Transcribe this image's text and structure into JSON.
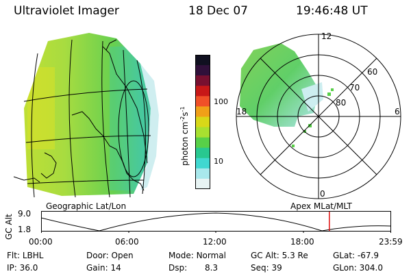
{
  "header": {
    "instrument": "Ultraviolet Imager",
    "date": "18 Dec 07",
    "time": "19:46:48 UT"
  },
  "colorbar": {
    "unit_label": "photon cm",
    "unit_sup1": "-2",
    "unit_mid": "s",
    "unit_sup2": "-1",
    "tick_100": "100",
    "tick_10": "10",
    "colors": [
      "#101020",
      "#30103a",
      "#781030",
      "#c81818",
      "#f05028",
      "#f0a018",
      "#d8d818",
      "#a8e030",
      "#58d048",
      "#28c890",
      "#40d8d0",
      "#a8e8ec",
      "#e8f4f4"
    ]
  },
  "map_labels": {
    "geographic": "Geographic Lat/Lon",
    "apex": "Apex MLat/MLT"
  },
  "polar": {
    "mlt_top": "12",
    "mlt_left": "18",
    "mlt_right": "6",
    "mlt_bottom": "0",
    "lat_60": "60",
    "lat_70": "70",
    "lat_80": "80"
  },
  "altitude_plot": {
    "ylabel": "GC Alt",
    "y_max": "9.0",
    "y_min": "1.8",
    "x_ticks": [
      "00:00",
      "06:00",
      "12:00",
      "18:00",
      "23:59"
    ],
    "current_time_hours": 19.78,
    "marker_color": "#e01010"
  },
  "info": {
    "filter_label": "Flt:",
    "filter_value": "LBHL",
    "ip_label": "IP:",
    "ip_value": "36.0",
    "door_label": "Door:",
    "door_value": "Open",
    "gain_label": "Gain:",
    "gain_value": "14",
    "mode_label": "Mode:",
    "mode_value": "Normal",
    "dsp_label": "Dsp:",
    "dsp_value": "8.3",
    "gcalt_label": "GC Alt:",
    "gcalt_value": "5.3 Re",
    "seq_label": "Seq:",
    "seq_value": "39",
    "glat_label": "GLat:",
    "glat_value": "-67.9",
    "glon_label": "GLon:",
    "glon_value": "304.0"
  }
}
